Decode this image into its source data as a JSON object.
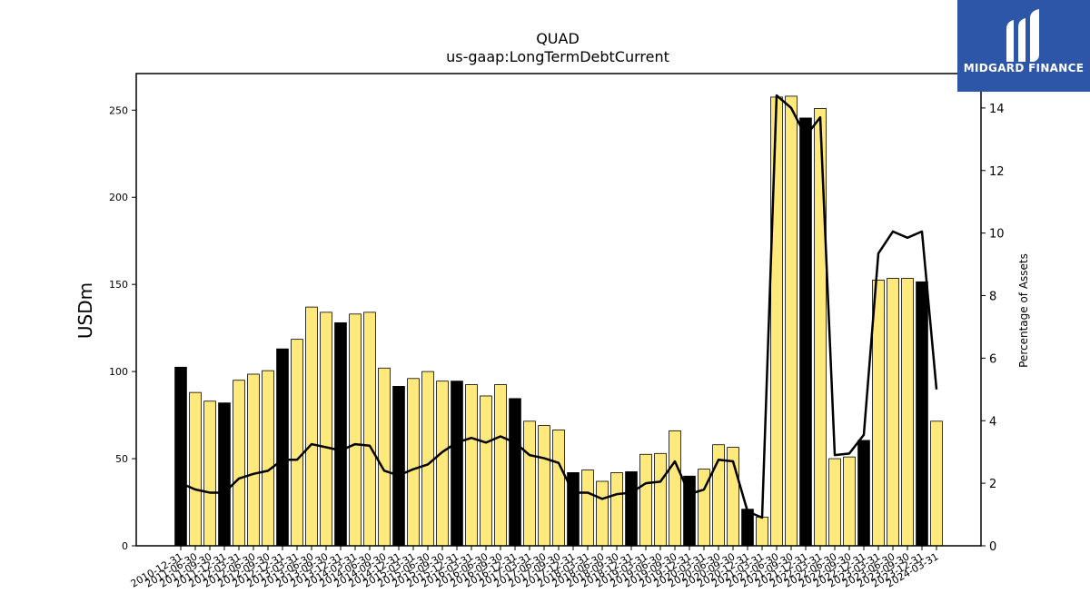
{
  "brand": {
    "name": "MIDGARD FINANCE",
    "logo_icon": "midgard-m-logo-icon",
    "background": "#2d56a8"
  },
  "colors": {
    "bar_regular": "#ffe97a",
    "bar_annual": "#000000",
    "line": "#000000"
  },
  "chart_data": {
    "type": "bar",
    "title": "QUAD",
    "subtitle": "us-gaap:LongTermDebtCurrent",
    "ylabel": "USDm",
    "y2label": "Percentage of Assets",
    "ylim": [
      0,
      271
    ],
    "y2lim": [
      0,
      15.1
    ],
    "yticks": [
      0,
      50,
      100,
      150,
      200,
      250
    ],
    "y2ticks": [
      0,
      2,
      4,
      6,
      8,
      10,
      12,
      14
    ],
    "x_tick_labels": [
      "2010-12-31",
      "2011-06-30",
      "2011-09-30",
      "2011-12-31",
      "2012-03-31",
      "2012-06-30",
      "2012-09-30",
      "2012-12-31",
      "2013-03-31",
      "2013-06-30",
      "2013-09-30",
      "2013-12-31",
      "2014-03-31",
      "2014-06-30",
      "2014-09-30",
      "2014-12-31",
      "2015-03-31",
      "2015-06-30",
      "2015-09-30",
      "2015-12-31",
      "2016-03-31",
      "2016-06-30",
      "2016-09-30",
      "2016-12-31",
      "2017-03-31",
      "2017-06-30",
      "2017-09-30",
      "2017-12-31",
      "2018-03-31",
      "2018-06-30",
      "2018-09-30",
      "2018-12-31",
      "2019-03-31",
      "2019-06-30",
      "2019-09-30",
      "2019-12-31",
      "2020-03-31",
      "2020-06-30",
      "2020-09-30",
      "2020-12-31",
      "2021-03-31",
      "2021-06-30",
      "2021-09-30",
      "2021-12-31",
      "2022-03-31",
      "2022-06-30",
      "2022-09-30",
      "2022-12-31",
      "2023-03-31",
      "2023-06-30",
      "2023-09-30",
      "2023-12-31",
      "2024-03-31"
    ],
    "series": [
      {
        "kind": "bar",
        "values": [
          102.5,
          88,
          83,
          82,
          95,
          98.5,
          100.5,
          113,
          118.5,
          137,
          134,
          128,
          133,
          134,
          102,
          91.5,
          96,
          100,
          94.5,
          94.5,
          92.5,
          86,
          92.5,
          84.5,
          71.5,
          69,
          66.5,
          42,
          43.5,
          37,
          42,
          42.5,
          52.5,
          53,
          66,
          40,
          44,
          58,
          56.5,
          21,
          16.5,
          257.5,
          258,
          245.5,
          251,
          50,
          51,
          60.5,
          152.5,
          153.5,
          153.5,
          151.5,
          71.5
        ],
        "annual": [
          true,
          false,
          false,
          true,
          false,
          false,
          false,
          true,
          false,
          false,
          false,
          true,
          false,
          false,
          false,
          true,
          false,
          false,
          false,
          true,
          false,
          false,
          false,
          true,
          false,
          false,
          false,
          true,
          false,
          false,
          false,
          true,
          false,
          false,
          false,
          true,
          false,
          false,
          false,
          true,
          false,
          false,
          false,
          true,
          false,
          false,
          false,
          true,
          false,
          false,
          false,
          true,
          false
        ]
      },
      {
        "kind": "line",
        "axis": "right",
        "values": [
          2.0,
          1.8,
          1.7,
          1.7,
          2.15,
          2.3,
          2.4,
          2.75,
          2.75,
          3.25,
          3.15,
          3.05,
          3.25,
          3.2,
          2.4,
          2.25,
          2.45,
          2.6,
          3.0,
          3.3,
          3.45,
          3.3,
          3.5,
          3.3,
          2.9,
          2.8,
          2.65,
          1.7,
          1.7,
          1.5,
          1.65,
          1.7,
          2.0,
          2.05,
          2.7,
          1.65,
          1.8,
          2.75,
          2.7,
          1.1,
          0.9,
          14.4,
          14.0,
          13.1,
          13.7,
          2.9,
          2.95,
          3.55,
          9.35,
          10.05,
          9.85,
          10.05,
          5.0
        ]
      }
    ],
    "grid": false,
    "legend": "none"
  }
}
